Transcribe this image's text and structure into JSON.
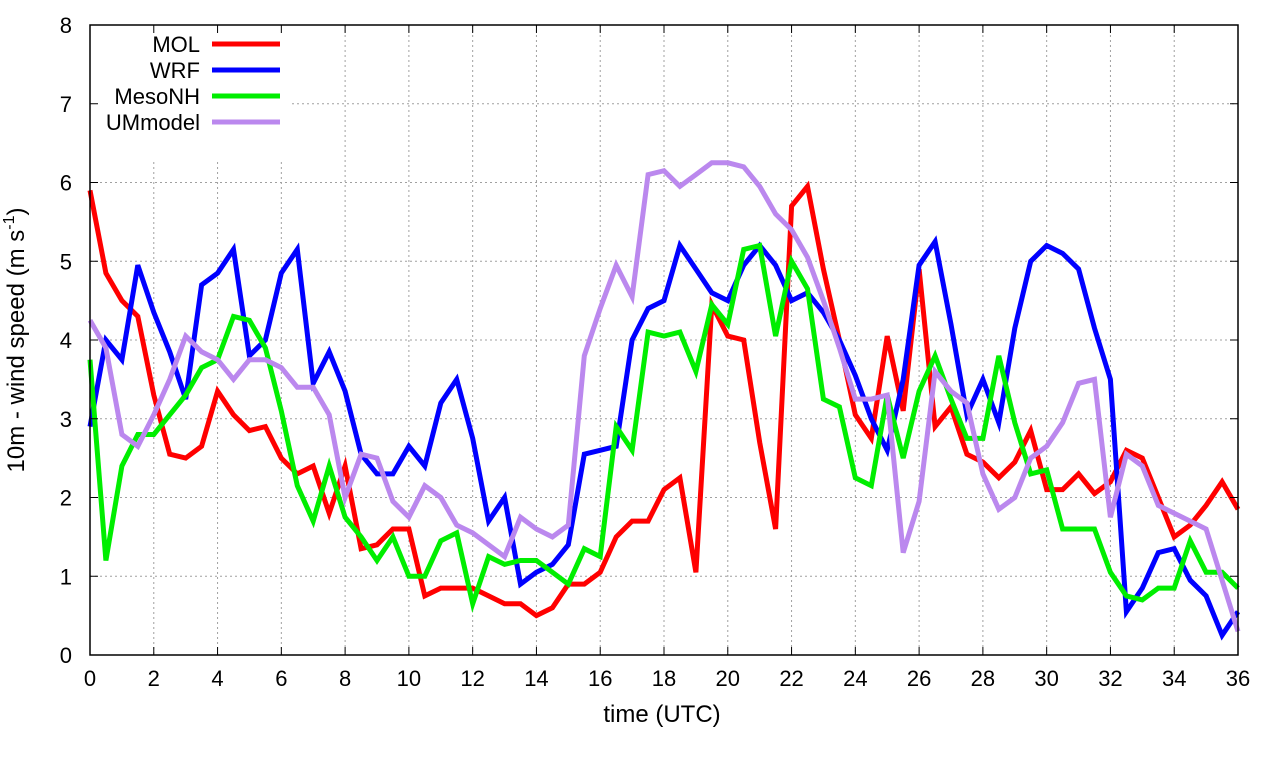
{
  "chart_data": {
    "type": "line",
    "xlabel": "time (UTC)",
    "ylabel_main": "10m - wind speed  (m s",
    "ylabel_sup": "-1",
    "ylabel_end": ")",
    "xlim": [
      0,
      36
    ],
    "ylim": [
      0,
      8
    ],
    "xticks": [
      0,
      2,
      4,
      6,
      8,
      10,
      12,
      14,
      16,
      18,
      20,
      22,
      24,
      26,
      28,
      30,
      32,
      34,
      36
    ],
    "yticks": [
      0,
      1,
      2,
      3,
      4,
      5,
      6,
      7,
      8
    ],
    "grid": true,
    "legend_position": "top-left",
    "series": [
      {
        "name": "MOL",
        "color": "#ff0000",
        "points": [
          [
            0,
            5.9
          ],
          [
            0.5,
            4.85
          ],
          [
            1,
            4.5
          ],
          [
            1.5,
            4.3
          ],
          [
            2,
            3.3
          ],
          [
            2.5,
            2.55
          ],
          [
            3,
            2.5
          ],
          [
            3.5,
            2.65
          ],
          [
            4,
            3.35
          ],
          [
            4.5,
            3.05
          ],
          [
            5,
            2.85
          ],
          [
            5.5,
            2.9
          ],
          [
            6,
            2.5
          ],
          [
            6.5,
            2.3
          ],
          [
            7,
            2.4
          ],
          [
            7.5,
            1.8
          ],
          [
            8,
            2.4
          ],
          [
            8.5,
            1.35
          ],
          [
            9,
            1.4
          ],
          [
            9.5,
            1.6
          ],
          [
            10,
            1.6
          ],
          [
            10.5,
            0.75
          ],
          [
            11,
            0.85
          ],
          [
            11.5,
            0.85
          ],
          [
            12,
            0.85
          ],
          [
            12.5,
            0.75
          ],
          [
            13,
            0.65
          ],
          [
            13.5,
            0.65
          ],
          [
            14,
            0.5
          ],
          [
            14.5,
            0.6
          ],
          [
            15,
            0.9
          ],
          [
            15.5,
            0.9
          ],
          [
            16,
            1.05
          ],
          [
            16.5,
            1.5
          ],
          [
            17,
            1.7
          ],
          [
            17.5,
            1.7
          ],
          [
            18,
            2.1
          ],
          [
            18.5,
            2.25
          ],
          [
            19,
            1.05
          ],
          [
            19.5,
            4.45
          ],
          [
            20,
            4.05
          ],
          [
            20.5,
            4.0
          ],
          [
            21,
            2.7
          ],
          [
            21.5,
            1.6
          ],
          [
            22,
            5.7
          ],
          [
            22.5,
            5.95
          ],
          [
            23,
            4.9
          ],
          [
            23.5,
            4.0
          ],
          [
            24,
            3.05
          ],
          [
            24.5,
            2.75
          ],
          [
            25,
            4.05
          ],
          [
            25.5,
            3.1
          ],
          [
            26,
            4.9
          ],
          [
            26.5,
            2.9
          ],
          [
            27,
            3.15
          ],
          [
            27.5,
            2.55
          ],
          [
            28,
            2.45
          ],
          [
            28.5,
            2.25
          ],
          [
            29,
            2.45
          ],
          [
            29.5,
            2.85
          ],
          [
            30,
            2.1
          ],
          [
            30.5,
            2.1
          ],
          [
            31,
            2.3
          ],
          [
            31.5,
            2.05
          ],
          [
            32,
            2.2
          ],
          [
            32.5,
            2.6
          ],
          [
            33,
            2.5
          ],
          [
            33.5,
            2.0
          ],
          [
            34,
            1.5
          ],
          [
            34.5,
            1.65
          ],
          [
            35,
            1.9
          ],
          [
            35.5,
            2.2
          ],
          [
            36,
            1.85
          ]
        ]
      },
      {
        "name": "WRF",
        "color": "#0000ff",
        "points": [
          [
            0,
            2.9
          ],
          [
            0.5,
            4.0
          ],
          [
            1,
            3.75
          ],
          [
            1.5,
            4.95
          ],
          [
            2,
            4.35
          ],
          [
            2.5,
            3.85
          ],
          [
            3,
            3.25
          ],
          [
            3.5,
            4.7
          ],
          [
            4,
            4.85
          ],
          [
            4.5,
            5.15
          ],
          [
            5,
            3.8
          ],
          [
            5.5,
            4.0
          ],
          [
            6,
            4.85
          ],
          [
            6.5,
            5.15
          ],
          [
            7,
            3.45
          ],
          [
            7.5,
            3.85
          ],
          [
            8,
            3.35
          ],
          [
            8.5,
            2.55
          ],
          [
            9,
            2.3
          ],
          [
            9.5,
            2.3
          ],
          [
            10,
            2.65
          ],
          [
            10.5,
            2.4
          ],
          [
            11,
            3.2
          ],
          [
            11.5,
            3.5
          ],
          [
            12,
            2.75
          ],
          [
            12.5,
            1.7
          ],
          [
            13,
            2.0
          ],
          [
            13.5,
            0.9
          ],
          [
            14,
            1.05
          ],
          [
            14.5,
            1.15
          ],
          [
            15,
            1.4
          ],
          [
            15.5,
            2.55
          ],
          [
            16,
            2.6
          ],
          [
            16.5,
            2.65
          ],
          [
            17,
            4.0
          ],
          [
            17.5,
            4.4
          ],
          [
            18,
            4.5
          ],
          [
            18.5,
            5.2
          ],
          [
            19,
            4.9
          ],
          [
            19.5,
            4.6
          ],
          [
            20,
            4.5
          ],
          [
            20.5,
            4.95
          ],
          [
            21,
            5.2
          ],
          [
            21.5,
            4.95
          ],
          [
            22,
            4.5
          ],
          [
            22.5,
            4.6
          ],
          [
            23,
            4.35
          ],
          [
            23.5,
            4.0
          ],
          [
            24,
            3.55
          ],
          [
            24.5,
            3.0
          ],
          [
            25,
            2.6
          ],
          [
            25.5,
            3.5
          ],
          [
            26,
            4.95
          ],
          [
            26.5,
            5.25
          ],
          [
            27,
            4.2
          ],
          [
            27.5,
            3.05
          ],
          [
            28,
            3.5
          ],
          [
            28.5,
            2.95
          ],
          [
            29,
            4.15
          ],
          [
            29.5,
            5.0
          ],
          [
            30,
            5.2
          ],
          [
            30.5,
            5.1
          ],
          [
            31,
            4.9
          ],
          [
            31.5,
            4.15
          ],
          [
            32,
            3.5
          ],
          [
            32.5,
            0.55
          ],
          [
            33,
            0.85
          ],
          [
            33.5,
            1.3
          ],
          [
            34,
            1.35
          ],
          [
            34.5,
            0.95
          ],
          [
            35,
            0.75
          ],
          [
            35.5,
            0.25
          ],
          [
            36,
            0.55
          ]
        ]
      },
      {
        "name": "MesoNH",
        "color": "#00ee00",
        "points": [
          [
            0,
            3.75
          ],
          [
            0.5,
            1.2
          ],
          [
            1,
            2.4
          ],
          [
            1.5,
            2.8
          ],
          [
            2,
            2.8
          ],
          [
            2.5,
            3.05
          ],
          [
            3,
            3.3
          ],
          [
            3.5,
            3.65
          ],
          [
            4,
            3.75
          ],
          [
            4.5,
            4.3
          ],
          [
            5,
            4.25
          ],
          [
            5.5,
            3.9
          ],
          [
            6,
            3.1
          ],
          [
            6.5,
            2.15
          ],
          [
            7,
            1.7
          ],
          [
            7.5,
            2.4
          ],
          [
            8,
            1.75
          ],
          [
            8.5,
            1.5
          ],
          [
            9,
            1.2
          ],
          [
            9.5,
            1.5
          ],
          [
            10,
            1.0
          ],
          [
            10.5,
            1.0
          ],
          [
            11,
            1.45
          ],
          [
            11.5,
            1.55
          ],
          [
            12,
            0.65
          ],
          [
            12.5,
            1.25
          ],
          [
            13,
            1.15
          ],
          [
            13.5,
            1.2
          ],
          [
            14,
            1.2
          ],
          [
            14.5,
            1.05
          ],
          [
            15,
            0.9
          ],
          [
            15.5,
            1.35
          ],
          [
            16,
            1.25
          ],
          [
            16.5,
            2.9
          ],
          [
            17,
            2.6
          ],
          [
            17.5,
            4.1
          ],
          [
            18,
            4.05
          ],
          [
            18.5,
            4.1
          ],
          [
            19,
            3.6
          ],
          [
            19.5,
            4.45
          ],
          [
            20,
            4.2
          ],
          [
            20.5,
            5.15
          ],
          [
            21,
            5.2
          ],
          [
            21.5,
            4.05
          ],
          [
            22,
            5.0
          ],
          [
            22.5,
            4.65
          ],
          [
            23,
            3.25
          ],
          [
            23.5,
            3.15
          ],
          [
            24,
            2.25
          ],
          [
            24.5,
            2.15
          ],
          [
            25,
            3.3
          ],
          [
            25.5,
            2.5
          ],
          [
            26,
            3.35
          ],
          [
            26.5,
            3.8
          ],
          [
            27,
            3.25
          ],
          [
            27.5,
            2.75
          ],
          [
            28,
            2.75
          ],
          [
            28.5,
            3.8
          ],
          [
            29,
            2.95
          ],
          [
            29.5,
            2.3
          ],
          [
            30,
            2.35
          ],
          [
            30.5,
            1.6
          ],
          [
            31,
            1.6
          ],
          [
            31.5,
            1.6
          ],
          [
            32,
            1.05
          ],
          [
            32.5,
            0.75
          ],
          [
            33,
            0.7
          ],
          [
            33.5,
            0.85
          ],
          [
            34,
            0.85
          ],
          [
            34.5,
            1.45
          ],
          [
            35,
            1.05
          ],
          [
            35.5,
            1.05
          ],
          [
            36,
            0.85
          ]
        ]
      },
      {
        "name": "UMmodel",
        "color": "#bb88ee",
        "points": [
          [
            0,
            4.25
          ],
          [
            0.5,
            3.9
          ],
          [
            1,
            2.8
          ],
          [
            1.5,
            2.65
          ],
          [
            2,
            3.05
          ],
          [
            2.5,
            3.5
          ],
          [
            3,
            4.05
          ],
          [
            3.5,
            3.85
          ],
          [
            4,
            3.75
          ],
          [
            4.5,
            3.5
          ],
          [
            5,
            3.75
          ],
          [
            5.5,
            3.75
          ],
          [
            6,
            3.65
          ],
          [
            6.5,
            3.4
          ],
          [
            7,
            3.4
          ],
          [
            7.5,
            3.05
          ],
          [
            8,
            2.0
          ],
          [
            8.5,
            2.55
          ],
          [
            9,
            2.5
          ],
          [
            9.5,
            1.95
          ],
          [
            10,
            1.75
          ],
          [
            10.5,
            2.15
          ],
          [
            11,
            2.0
          ],
          [
            11.5,
            1.65
          ],
          [
            12,
            1.55
          ],
          [
            12.5,
            1.4
          ],
          [
            13,
            1.25
          ],
          [
            13.5,
            1.75
          ],
          [
            14,
            1.6
          ],
          [
            14.5,
            1.5
          ],
          [
            15,
            1.65
          ],
          [
            15.5,
            3.8
          ],
          [
            16,
            4.4
          ],
          [
            16.5,
            4.95
          ],
          [
            17,
            4.55
          ],
          [
            17.5,
            6.1
          ],
          [
            18,
            6.15
          ],
          [
            18.5,
            5.95
          ],
          [
            19,
            6.1
          ],
          [
            19.5,
            6.25
          ],
          [
            20,
            6.25
          ],
          [
            20.5,
            6.2
          ],
          [
            21,
            5.95
          ],
          [
            21.5,
            5.6
          ],
          [
            22,
            5.4
          ],
          [
            22.5,
            5.05
          ],
          [
            23,
            4.5
          ],
          [
            23.5,
            3.9
          ],
          [
            24,
            3.25
          ],
          [
            24.5,
            3.25
          ],
          [
            25,
            3.3
          ],
          [
            25.5,
            1.3
          ],
          [
            26,
            1.95
          ],
          [
            26.5,
            3.6
          ],
          [
            27,
            3.35
          ],
          [
            27.5,
            3.2
          ],
          [
            28,
            2.3
          ],
          [
            28.5,
            1.85
          ],
          [
            29,
            2.0
          ],
          [
            29.5,
            2.5
          ],
          [
            30,
            2.65
          ],
          [
            30.5,
            2.95
          ],
          [
            31,
            3.45
          ],
          [
            31.5,
            3.5
          ],
          [
            32,
            1.75
          ],
          [
            32.5,
            2.55
          ],
          [
            33,
            2.4
          ],
          [
            33.5,
            1.9
          ],
          [
            34,
            1.8
          ],
          [
            34.5,
            1.7
          ],
          [
            35,
            1.6
          ],
          [
            35.5,
            0.95
          ],
          [
            36,
            0.3
          ]
        ]
      }
    ]
  }
}
